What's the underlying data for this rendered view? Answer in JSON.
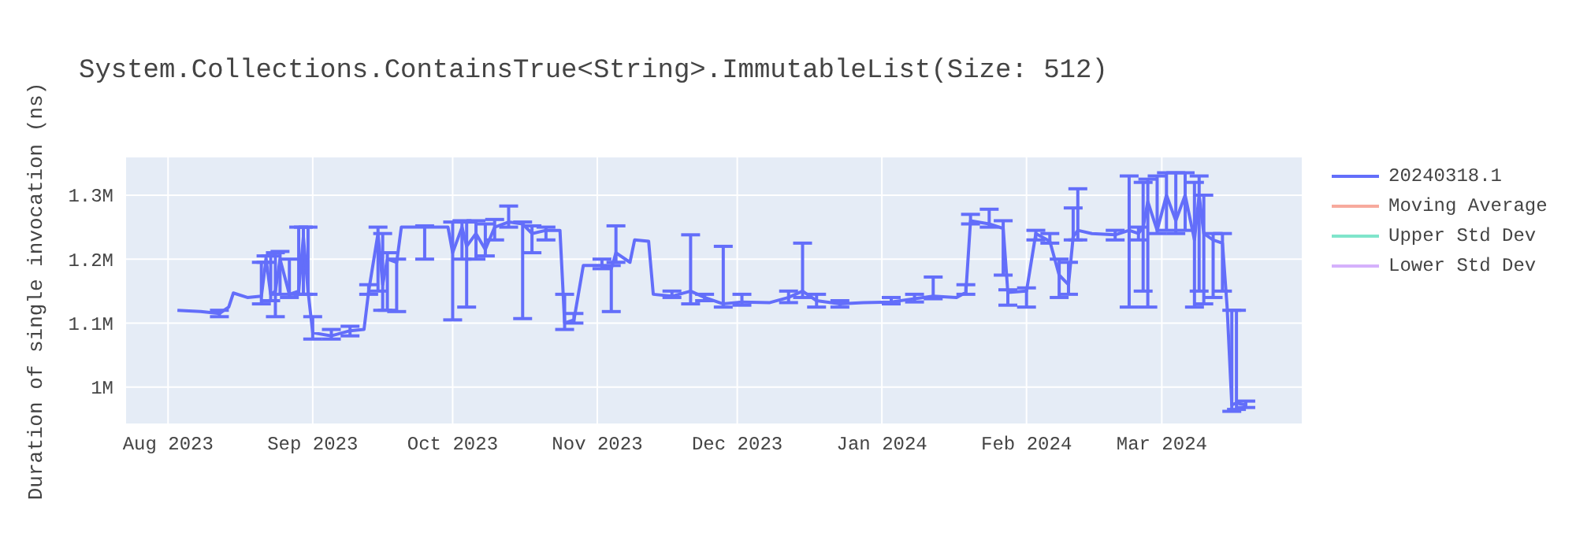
{
  "chart_data": {
    "type": "line",
    "title": "System.Collections.ContainsTrue<String>.ImmutableList(Size: 512)",
    "ylabel": "Duration of single invocation (ns)",
    "xlim": [
      "2023-07-23",
      "2024-03-31"
    ],
    "xticks": [
      {
        "value": "2023-08-01",
        "label": "Aug 2023"
      },
      {
        "value": "2023-09-01",
        "label": "Sep 2023"
      },
      {
        "value": "2023-10-01",
        "label": "Oct 2023"
      },
      {
        "value": "2023-11-01",
        "label": "Nov 2023"
      },
      {
        "value": "2023-12-01",
        "label": "Dec 2023"
      },
      {
        "value": "2024-01-01",
        "label": "Jan 2024"
      },
      {
        "value": "2024-02-01",
        "label": "Feb 2024"
      },
      {
        "value": "2024-03-01",
        "label": "Mar 2024"
      }
    ],
    "ylim": [
      943000,
      1359000
    ],
    "yticks": [
      {
        "value": 1000000,
        "label": "1M"
      },
      {
        "value": 1100000,
        "label": "1.1M"
      },
      {
        "value": 1200000,
        "label": "1.2M"
      },
      {
        "value": 1300000,
        "label": "1.3M"
      }
    ],
    "grid": true,
    "legend": "top right",
    "marker": "none",
    "line_style": "solid",
    "series": [
      {
        "name": "20240318.1",
        "color": "#636efa",
        "x": [
          "2023-08-03",
          "2023-08-08",
          "2023-08-12",
          "2023-08-14",
          "2023-08-15",
          "2023-08-18",
          "2023-08-21",
          "2023-08-22",
          "2023-08-23",
          "2023-08-24",
          "2023-08-25",
          "2023-08-27",
          "2023-08-29",
          "2023-08-30",
          "2023-08-31",
          "2023-09-01",
          "2023-09-05",
          "2023-09-09",
          "2023-09-12",
          "2023-09-13",
          "2023-09-15",
          "2023-09-16",
          "2023-09-17",
          "2023-09-19",
          "2023-09-20",
          "2023-09-25",
          "2023-09-30",
          "2023-10-01",
          "2023-10-03",
          "2023-10-04",
          "2023-10-06",
          "2023-10-08",
          "2023-10-10",
          "2023-10-13",
          "2023-10-16",
          "2023-10-18",
          "2023-10-21",
          "2023-10-24",
          "2023-10-25",
          "2023-10-27",
          "2023-10-29",
          "2023-11-02",
          "2023-11-04",
          "2023-11-05",
          "2023-11-08",
          "2023-11-09",
          "2023-11-12",
          "2023-11-13",
          "2023-11-17",
          "2023-11-21",
          "2023-11-24",
          "2023-11-28",
          "2023-12-02",
          "2023-12-08",
          "2023-12-12",
          "2023-12-15",
          "2023-12-18",
          "2023-12-23",
          "2023-12-28",
          "2024-01-03",
          "2024-01-08",
          "2024-01-12",
          "2024-01-17",
          "2024-01-19",
          "2024-01-20",
          "2024-01-24",
          "2024-01-27",
          "2024-01-28",
          "2024-02-01",
          "2024-02-03",
          "2024-02-06",
          "2024-02-08",
          "2024-02-10",
          "2024-02-11",
          "2024-02-12",
          "2024-02-15",
          "2024-02-20",
          "2024-02-23",
          "2024-02-25",
          "2024-02-26",
          "2024-02-27",
          "2024-02-29",
          "2024-03-02",
          "2024-03-04",
          "2024-03-06",
          "2024-03-08",
          "2024-03-09",
          "2024-03-10",
          "2024-03-12",
          "2024-03-14",
          "2024-03-15",
          "2024-03-16",
          "2024-03-17",
          "2024-03-19"
        ],
        "values": [
          1120000,
          1118000,
          1115000,
          1125000,
          1147000,
          1140000,
          1142000,
          1200000,
          1145000,
          1150000,
          1200000,
          1145000,
          1150000,
          1235000,
          1150000,
          1085000,
          1080000,
          1088000,
          1090000,
          1150000,
          1240000,
          1160000,
          1200000,
          1195000,
          1250000,
          1250000,
          1250000,
          1210000,
          1250000,
          1220000,
          1240000,
          1215000,
          1250000,
          1258000,
          1255000,
          1240000,
          1245000,
          1245000,
          1100000,
          1105000,
          1190000,
          1190000,
          1185000,
          1210000,
          1195000,
          1230000,
          1228000,
          1145000,
          1142000,
          1150000,
          1140000,
          1130000,
          1133000,
          1132000,
          1140000,
          1150000,
          1135000,
          1130000,
          1132000,
          1133000,
          1138000,
          1142000,
          1140000,
          1148000,
          1260000,
          1255000,
          1248000,
          1148000,
          1150000,
          1240000,
          1228000,
          1175000,
          1160000,
          1235000,
          1245000,
          1240000,
          1238000,
          1245000,
          1240000,
          1250000,
          1290000,
          1245000,
          1300000,
          1260000,
          1300000,
          1230000,
          1300000,
          1240000,
          1230000,
          1225000,
          1125000,
          972000,
          975000,
          972000
        ],
        "errors": [
          null,
          null,
          [
            1110000,
            1120000
          ],
          null,
          null,
          null,
          [
            1130000,
            1195000
          ],
          [
            1195000,
            1205000
          ],
          [
            1135000,
            1205000
          ],
          [
            1110000,
            1210000
          ],
          [
            1145000,
            1212000
          ],
          [
            1140000,
            1200000
          ],
          [
            1145000,
            1250000
          ],
          [
            1145000,
            1250000
          ],
          [
            1145000,
            1250000
          ],
          [
            1075000,
            1110000
          ],
          [
            1075000,
            1090000
          ],
          [
            1080000,
            1095000
          ],
          null,
          [
            1145000,
            1160000
          ],
          [
            1150000,
            1250000
          ],
          [
            1120000,
            1240000
          ],
          [
            1120000,
            1210000
          ],
          [
            1118000,
            1200000
          ],
          null,
          [
            1200000,
            1252000
          ],
          null,
          [
            1105000,
            1258000
          ],
          [
            1200000,
            1260000
          ],
          [
            1125000,
            1258000
          ],
          [
            1200000,
            1260000
          ],
          [
            1205000,
            1255000
          ],
          [
            1230000,
            1262000
          ],
          [
            1250000,
            1283000
          ],
          [
            1107000,
            1258000
          ],
          [
            1210000,
            1252000
          ],
          [
            1230000,
            1250000
          ],
          null,
          [
            1090000,
            1145000
          ],
          [
            1100000,
            1115000
          ],
          null,
          [
            1185000,
            1200000
          ],
          [
            1118000,
            1190000
          ],
          [
            1195000,
            1252000
          ],
          null,
          null,
          null,
          null,
          [
            1140000,
            1150000
          ],
          [
            1130000,
            1238000
          ],
          [
            1135000,
            1145000
          ],
          [
            1125000,
            1220000
          ],
          [
            1128000,
            1145000
          ],
          null,
          [
            1132000,
            1150000
          ],
          [
            1140000,
            1225000
          ],
          [
            1125000,
            1145000
          ],
          [
            1125000,
            1135000
          ],
          null,
          [
            1130000,
            1140000
          ],
          [
            1133000,
            1145000
          ],
          [
            1138000,
            1172000
          ],
          null,
          [
            1145000,
            1160000
          ],
          [
            1255000,
            1270000
          ],
          [
            1250000,
            1278000
          ],
          [
            1175000,
            1260000
          ],
          [
            1128000,
            1152000
          ],
          [
            1125000,
            1155000
          ],
          [
            1230000,
            1245000
          ],
          [
            1225000,
            1240000
          ],
          [
            1140000,
            1200000
          ],
          [
            1145000,
            1195000
          ],
          [
            1230000,
            1280000
          ],
          [
            1230000,
            1310000
          ],
          null,
          [
            1230000,
            1245000
          ],
          [
            1125000,
            1330000
          ],
          [
            1230000,
            1250000
          ],
          [
            1150000,
            1320000
          ],
          [
            1125000,
            1325000
          ],
          [
            1240000,
            1330000
          ],
          [
            1245000,
            1335000
          ],
          [
            1240000,
            1335000
          ],
          [
            1245000,
            1335000
          ],
          [
            1125000,
            1320000
          ],
          [
            1150000,
            1330000
          ],
          [
            1130000,
            1300000
          ],
          [
            1140000,
            1240000
          ],
          [
            1150000,
            1240000
          ],
          null,
          [
            962000,
            1120000
          ],
          [
            965000,
            1120000
          ],
          [
            968000,
            978000
          ]
        ]
      },
      {
        "name": "Moving Average",
        "color": "#f7aa9d"
      },
      {
        "name": "Upper Std Dev",
        "color": "#80e5cb"
      },
      {
        "name": "Lower Std Dev",
        "color": "#d5b1fc"
      }
    ]
  }
}
